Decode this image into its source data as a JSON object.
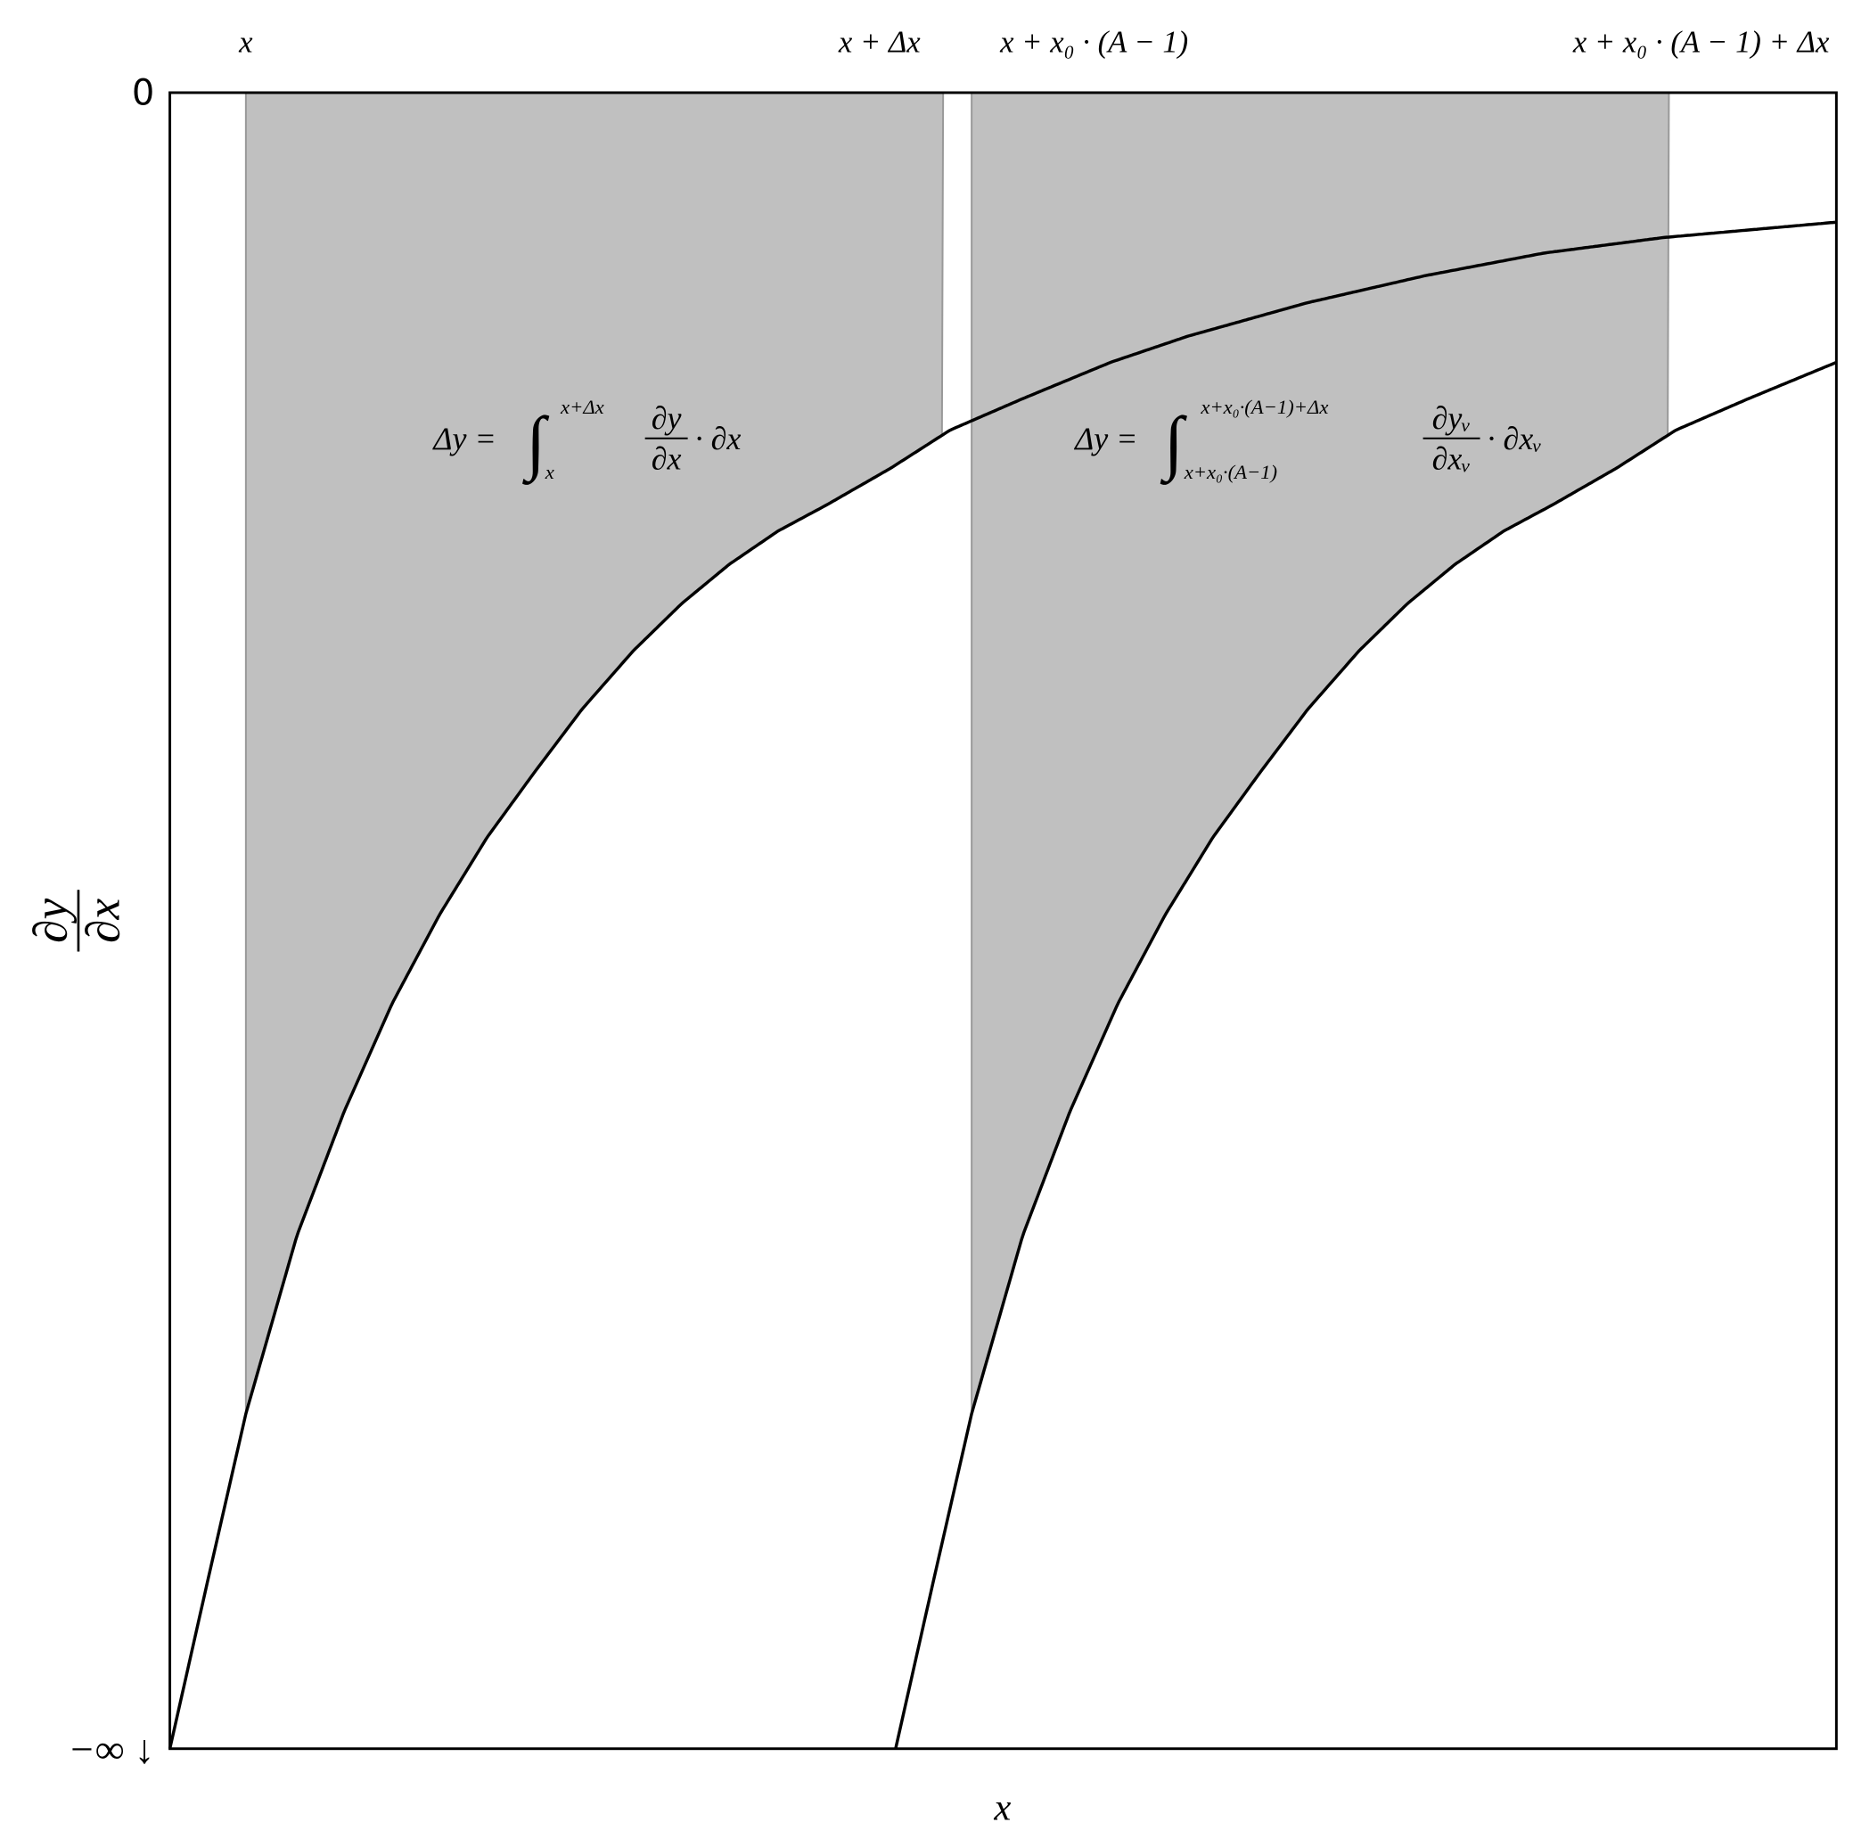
{
  "axes": {
    "x_label": "x",
    "y_label": {
      "numerator": "∂y",
      "denominator": "∂x"
    },
    "y_top": "0",
    "y_bottom": "−∞ ↓"
  },
  "top_labels": [
    "x",
    "x + Δx",
    "x + x₀ · (A − 1)",
    "x + x₀ · (A − 1) + Δx"
  ],
  "formulas": [
    {
      "lhs": "Δy =",
      "integral": "∫",
      "upper": "x+Δx",
      "lower": "x",
      "numerator": "∂y",
      "denominator": "∂x",
      "rest": "· ∂x"
    },
    {
      "lhs": "Δy =",
      "integral": "∫",
      "upper": "x+x₀·(A−1)+Δx",
      "lower": "x+x₀·(A−1)",
      "numerator": "∂yᵥ",
      "denominator": "∂xᵥ",
      "rest": "· ∂xᵥ"
    }
  ]
}
